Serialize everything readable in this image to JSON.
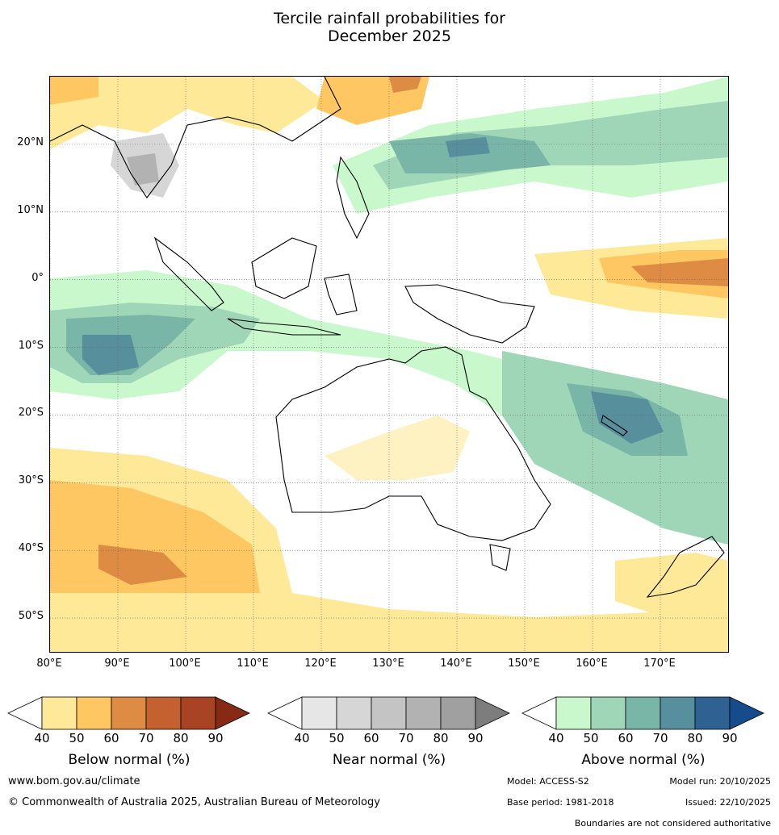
{
  "title": {
    "line1": "Tercile rainfall probabilities for",
    "line2": "December 2025"
  },
  "map": {
    "lat_labels": [
      "20°N",
      "10°N",
      "0°",
      "10°S",
      "20°S",
      "30°S",
      "40°S",
      "50°S"
    ],
    "lat_values": [
      20,
      10,
      0,
      -10,
      -20,
      -30,
      -40,
      -50
    ],
    "lon_labels": [
      "80°E",
      "90°E",
      "100°E",
      "110°E",
      "120°E",
      "130°E",
      "140°E",
      "150°E",
      "160°E",
      "170°E"
    ],
    "lon_values": [
      80,
      90,
      100,
      110,
      120,
      130,
      140,
      150,
      160,
      170
    ],
    "lon_range": [
      80,
      180
    ],
    "lat_range": [
      -55,
      30
    ]
  },
  "colorbars": [
    {
      "label": "Below normal (%)",
      "ticks": [
        "40",
        "50",
        "60",
        "70",
        "80",
        "90"
      ],
      "colors": [
        "#ffffff",
        "#fee999",
        "#fec762",
        "#de8c44",
        "#c5602f",
        "#a84424",
        "#862915"
      ]
    },
    {
      "label": "Near normal (%)",
      "ticks": [
        "40",
        "50",
        "60",
        "70",
        "80",
        "90"
      ],
      "colors": [
        "#ffffff",
        "#e6e6e6",
        "#d6d6d6",
        "#c4c4c4",
        "#b2b2b2",
        "#a0a0a0",
        "#7d7d7d"
      ]
    },
    {
      "label": "Above normal (%)",
      "ticks": [
        "40",
        "50",
        "60",
        "70",
        "80",
        "90"
      ],
      "colors": [
        "#ffffff",
        "#c9f8cc",
        "#a0d6b8",
        "#7ab6a7",
        "#578f9d",
        "#2f6193",
        "#164b8c"
      ]
    }
  ],
  "footer": {
    "url": "www.bom.gov.au/climate",
    "copyright": "© Commonwealth of Australia 2025, Australian Bureau of Meteorology",
    "model": "Model: ACCESS-S2",
    "model_run": "Model run: 20/10/2025",
    "base_period": "Base period: 1981-2018",
    "issued": "Issued: 22/10/2025",
    "disclaimer": "Boundaries are not considered authoritative"
  }
}
